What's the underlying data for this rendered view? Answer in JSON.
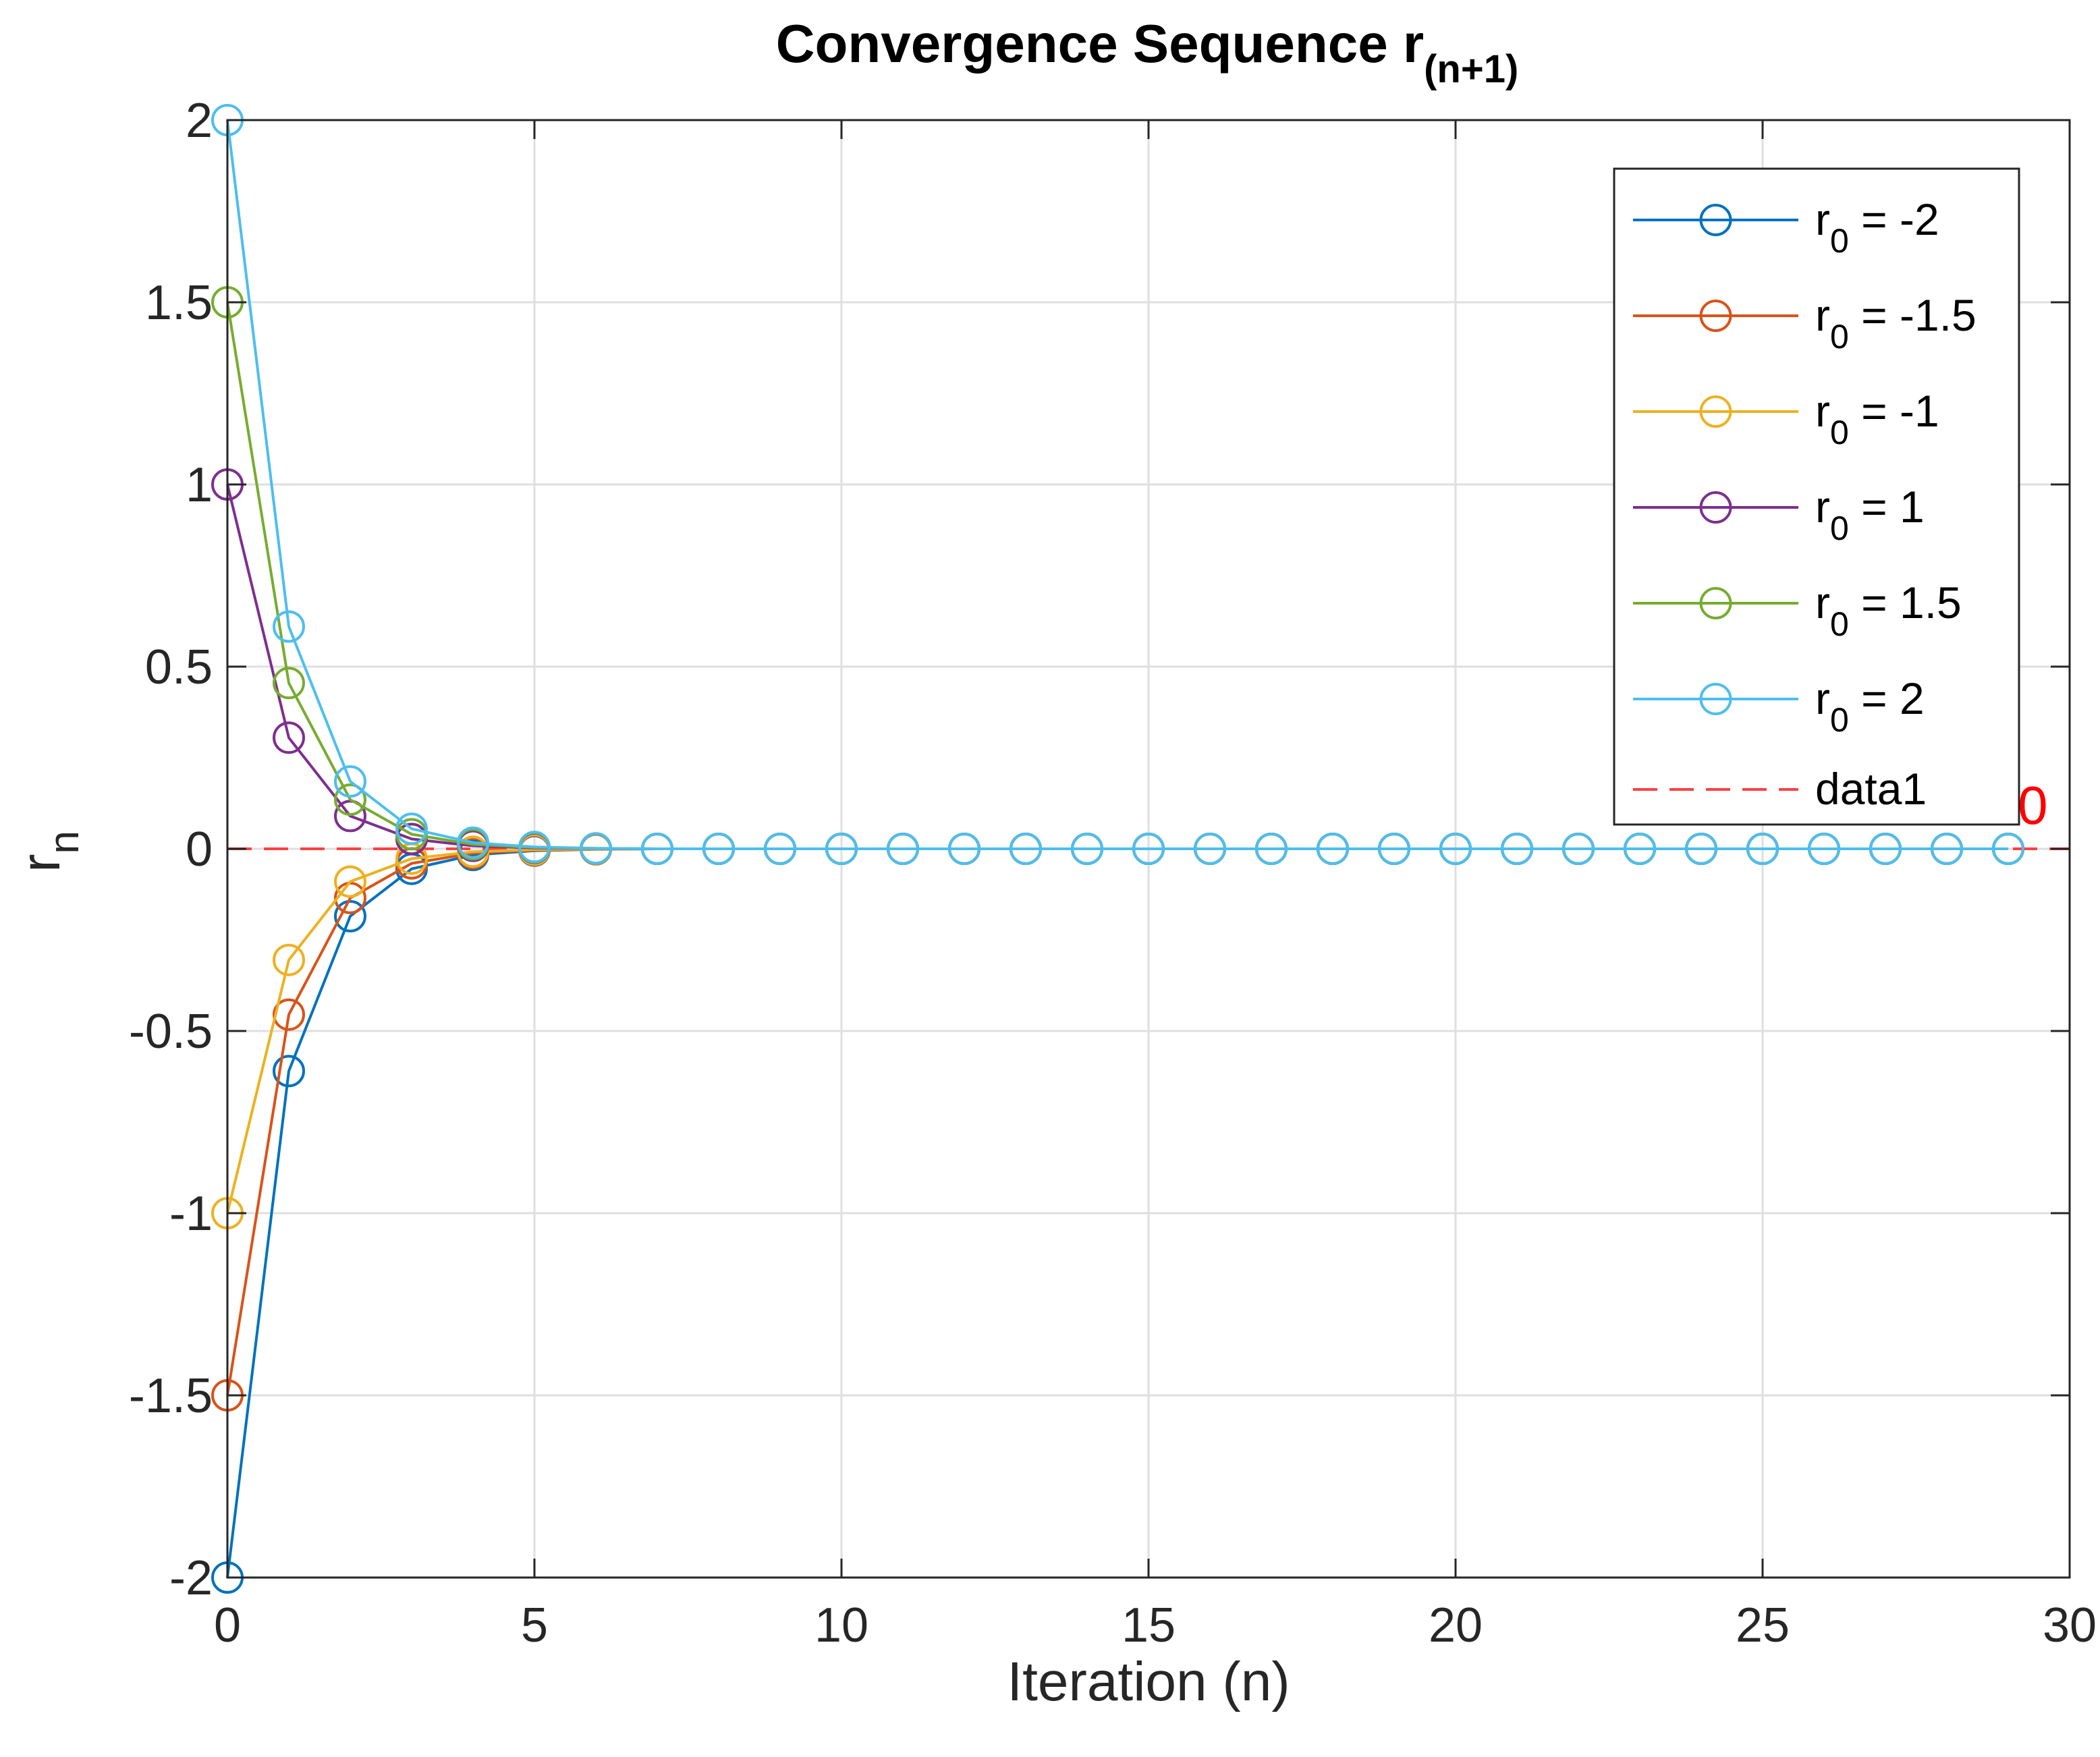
{
  "chart_data": {
    "type": "line",
    "title_main": "Convergence Sequence r",
    "title_sub": "(n+1)",
    "xlabel": "Iteration (n)",
    "ylabel_main": "r",
    "ylabel_sub": "n",
    "xlim": [
      0,
      30
    ],
    "ylim": [
      -2,
      2
    ],
    "xticks": [
      0,
      5,
      10,
      15,
      20,
      25,
      30
    ],
    "yticks": [
      -2,
      -1.5,
      -1,
      -0.5,
      0,
      0.5,
      1,
      1.5,
      2
    ],
    "xtick_labels": [
      "0",
      "5",
      "10",
      "15",
      "20",
      "25",
      "30"
    ],
    "ytick_labels": [
      "-2",
      "-1.5",
      "-1",
      "-0.5",
      "0",
      "0.5",
      "1",
      "1.5",
      "2"
    ],
    "grid": true,
    "legend_position": "top-right",
    "series": [
      {
        "name": "r0 = -2",
        "label_base": "r",
        "label_sub": "0",
        "label_rest": " = -2",
        "color": "#0072BD",
        "values": [
          -2,
          -0.61,
          -0.185,
          -0.055,
          -0.017,
          -0.005,
          -0.0015,
          0,
          0,
          0,
          0,
          0,
          0,
          0,
          0,
          0,
          0,
          0,
          0,
          0,
          0,
          0,
          0,
          0,
          0,
          0,
          0,
          0,
          0,
          0
        ]
      },
      {
        "name": "r0 = -1.5",
        "label_base": "r",
        "label_sub": "0",
        "label_rest": " = -1.5",
        "color": "#D95319",
        "values": [
          -1.5,
          -0.455,
          -0.135,
          -0.04,
          -0.012,
          -0.0036,
          -0.001,
          0,
          0,
          0,
          0,
          0,
          0,
          0,
          0,
          0,
          0,
          0,
          0,
          0,
          0,
          0,
          0,
          0,
          0,
          0,
          0,
          0,
          0,
          0
        ]
      },
      {
        "name": "r0 = -1",
        "label_base": "r",
        "label_sub": "0",
        "label_rest": " = -1",
        "color": "#EDB120",
        "values": [
          -1,
          -0.305,
          -0.09,
          -0.027,
          -0.008,
          -0.0024,
          -0.0007,
          0,
          0,
          0,
          0,
          0,
          0,
          0,
          0,
          0,
          0,
          0,
          0,
          0,
          0,
          0,
          0,
          0,
          0,
          0,
          0,
          0,
          0,
          0
        ]
      },
      {
        "name": "r0 = 1",
        "label_base": "r",
        "label_sub": "0",
        "label_rest": " = 1",
        "color": "#7E2F8E",
        "values": [
          1,
          0.305,
          0.09,
          0.027,
          0.008,
          0.0024,
          0.0007,
          0,
          0,
          0,
          0,
          0,
          0,
          0,
          0,
          0,
          0,
          0,
          0,
          0,
          0,
          0,
          0,
          0,
          0,
          0,
          0,
          0,
          0,
          0
        ]
      },
      {
        "name": "r0 = 1.5",
        "label_base": "r",
        "label_sub": "0",
        "label_rest": " = 1.5",
        "color": "#77AC30",
        "values": [
          1.5,
          0.455,
          0.135,
          0.04,
          0.012,
          0.0036,
          0.001,
          0,
          0,
          0,
          0,
          0,
          0,
          0,
          0,
          0,
          0,
          0,
          0,
          0,
          0,
          0,
          0,
          0,
          0,
          0,
          0,
          0,
          0,
          0
        ]
      },
      {
        "name": "r0 = 2",
        "label_base": "r",
        "label_sub": "0",
        "label_rest": " = 2",
        "color": "#4DBEEE",
        "values": [
          2,
          0.61,
          0.185,
          0.055,
          0.017,
          0.005,
          0.0015,
          0,
          0,
          0,
          0,
          0,
          0,
          0,
          0,
          0,
          0,
          0,
          0,
          0,
          0,
          0,
          0,
          0,
          0,
          0,
          0,
          0,
          0,
          0
        ]
      }
    ],
    "reference_line": {
      "name": "data1",
      "label": "data1",
      "y": 0,
      "color": "#FF4040",
      "style": "dashed"
    },
    "annotation": {
      "text": "0",
      "x": 29.4,
      "y": 0.12,
      "color": "#FF0000"
    }
  }
}
